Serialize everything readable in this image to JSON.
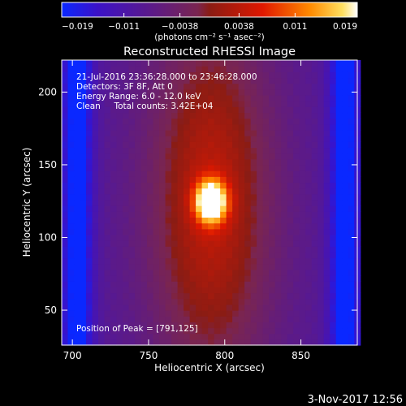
{
  "chart_data": {
    "type": "heatmap",
    "title": "Reconstructed RHESSI Image",
    "xlabel": "Heliocentric X (arcsec)",
    "ylabel": "Heliocentric Y (arcsec)",
    "xlim": [
      693,
      887
    ],
    "ylim": [
      26,
      222
    ],
    "x_ticks": [
      700,
      750,
      800,
      850
    ],
    "y_ticks": [
      50,
      100,
      150,
      200
    ],
    "colorbar": {
      "range": [
        -0.019,
        0.019
      ],
      "ticks": [
        -0.019,
        -0.011,
        -0.0038,
        0.0038,
        0.011,
        0.019
      ],
      "tick_labels": [
        "-0.019",
        "-0.011",
        "-0.0038",
        "0.0038",
        "0.011",
        "0.019"
      ],
      "unit_label": "(photons cm⁻² s⁻¹ asec⁻²)"
    },
    "peak": {
      "x": 791,
      "y": 125
    },
    "annotations": [
      "21-Jul-2016 23:36:28.000 to 23:46:28.000",
      "Detectors: 3F 8F, Att 0",
      "Energy Range: 6.0 - 12.0 keV",
      "Clean     Total counts: 3.42E+04",
      "Position of Peak = [791,125]"
    ],
    "footer": "3-Nov-2017 12:56",
    "grid": false,
    "legend": "none"
  }
}
